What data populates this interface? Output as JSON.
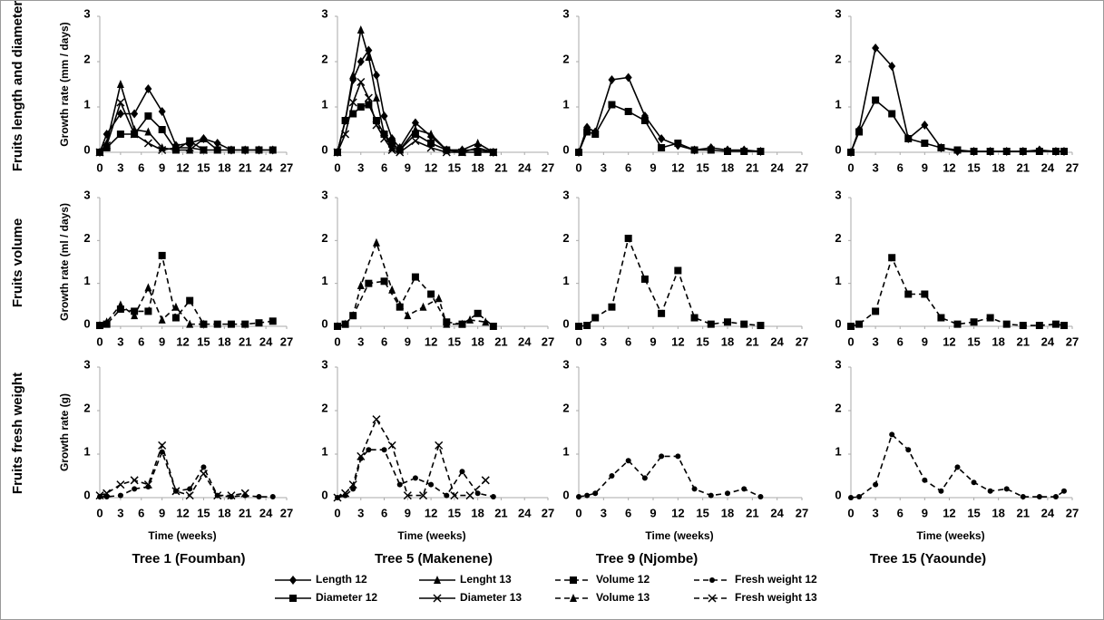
{
  "row_labels": [
    "Fruits length and diameter",
    "Fruits volume",
    "Fruits fresh weight"
  ],
  "column_titles": [
    "Tree 1 (Foumban)",
    "Tree 5 (Makenene)",
    "Tree 9 (Njombe)",
    "Tree 15 (Yaounde)"
  ],
  "legend": [
    {
      "name": "Length 12",
      "marker": "diamond",
      "dash": false,
      "color": "#000000"
    },
    {
      "name": "Lenght 13",
      "marker": "triangle",
      "dash": false,
      "color": "#000000"
    },
    {
      "name": "Volume 12",
      "marker": "square",
      "dash": true,
      "color": "#000000"
    },
    {
      "name": "Fresh weight 12",
      "marker": "circle",
      "dash": true,
      "color": "#000000"
    },
    {
      "name": "Diameter 12",
      "marker": "square",
      "dash": false,
      "color": "#000000"
    },
    {
      "name": "Diameter 13",
      "marker": "cross",
      "dash": false,
      "color": "#000000"
    },
    {
      "name": "Volume 13",
      "marker": "triangle",
      "dash": true,
      "color": "#000000"
    },
    {
      "name": "Fresh weight 13",
      "marker": "cross",
      "dash": true,
      "color": "#000000"
    }
  ],
  "chart_data": [
    {
      "type": "line",
      "y_label": "Growth rate (mm / days)",
      "xlim": [
        0,
        27
      ],
      "ylim": [
        0,
        3
      ],
      "xticks": [
        0,
        3,
        6,
        9,
        12,
        15,
        18,
        21,
        24,
        27
      ],
      "yticks": [
        0,
        1,
        2,
        3
      ],
      "series": [
        {
          "name": "Length 12",
          "x": [
            0,
            1,
            3,
            5,
            7,
            9,
            11,
            13,
            15,
            17,
            19,
            21,
            23,
            25
          ],
          "values": [
            0,
            0.4,
            0.85,
            0.85,
            1.4,
            0.9,
            0.15,
            0.2,
            0.3,
            0.2,
            0.05,
            0.05,
            0.05,
            0.05
          ]
        },
        {
          "name": "Lenght 13",
          "x": [
            0,
            1,
            3,
            5,
            7,
            9,
            11,
            13,
            15,
            17
          ],
          "values": [
            0,
            0.2,
            1.5,
            0.5,
            0.45,
            0.1,
            0.05,
            0.05,
            0.3,
            0.05
          ]
        },
        {
          "name": "Diameter 12",
          "x": [
            0,
            1,
            3,
            5,
            7,
            9,
            11,
            13,
            15,
            17,
            19,
            21,
            23,
            25
          ],
          "values": [
            0,
            0.1,
            0.4,
            0.4,
            0.8,
            0.5,
            0.05,
            0.25,
            0.05,
            0.05,
            0.05,
            0.05,
            0.05,
            0.05
          ]
        },
        {
          "name": "Diameter 13",
          "x": [
            0,
            1,
            3,
            5,
            7,
            9,
            11,
            13,
            15
          ],
          "values": [
            0,
            0.15,
            1.1,
            0.4,
            0.2,
            0.05,
            0.1,
            0.1,
            0.05
          ]
        }
      ]
    },
    {
      "type": "line",
      "xlim": [
        0,
        27
      ],
      "ylim": [
        0,
        3
      ],
      "xticks": [
        0,
        3,
        6,
        9,
        12,
        15,
        18,
        21,
        24,
        27
      ],
      "yticks": [
        0,
        1,
        2,
        3
      ],
      "series": [
        {
          "name": "Length 12",
          "x": [
            0,
            1,
            2,
            3,
            4,
            5,
            6,
            7,
            8,
            10,
            12,
            14,
            16,
            18,
            20
          ],
          "values": [
            0,
            0.7,
            1.6,
            2,
            2.25,
            1.7,
            0.8,
            0.3,
            0.1,
            0.65,
            0.35,
            0.05,
            0.05,
            0.05,
            0
          ]
        },
        {
          "name": "Lenght 13",
          "x": [
            0,
            1,
            2,
            3,
            4,
            5,
            6,
            7,
            8,
            10,
            12,
            14,
            16,
            18,
            20
          ],
          "values": [
            0,
            0.7,
            1.7,
            2.7,
            2.1,
            1.2,
            0.4,
            0.1,
            0.05,
            0.5,
            0.4,
            0.05,
            0.05,
            0.2,
            0
          ]
        },
        {
          "name": "Diameter 12",
          "x": [
            0,
            1,
            2,
            3,
            4,
            5,
            6,
            7,
            8,
            10,
            12,
            14,
            16,
            18,
            20
          ],
          "values": [
            0,
            0.7,
            0.85,
            1,
            1.05,
            0.7,
            0.4,
            0.2,
            0.05,
            0.4,
            0.2,
            0.05,
            0,
            0,
            0
          ]
        },
        {
          "name": "Diameter 13",
          "x": [
            0,
            1,
            2,
            3,
            4,
            5,
            6,
            7,
            8,
            10,
            12,
            14,
            16,
            18,
            20
          ],
          "values": [
            0,
            0.4,
            1.1,
            1.55,
            1.2,
            0.6,
            0.3,
            0.05,
            0,
            0.25,
            0.1,
            0,
            0,
            0.1,
            0
          ]
        }
      ]
    },
    {
      "type": "line",
      "xlim": [
        0,
        27
      ],
      "ylim": [
        0,
        3
      ],
      "xticks": [
        0,
        3,
        6,
        9,
        12,
        15,
        18,
        21,
        24,
        27
      ],
      "yticks": [
        0,
        1,
        2,
        3
      ],
      "series": [
        {
          "name": "Length 12",
          "x": [
            0,
            1,
            2,
            4,
            6,
            8,
            10,
            12,
            14,
            16,
            18,
            20,
            22
          ],
          "values": [
            0,
            0.55,
            0.45,
            1.6,
            1.65,
            0.8,
            0.3,
            0.15,
            0.05,
            0.1,
            0.05,
            0.05,
            0.02
          ]
        },
        {
          "name": "Diameter 12",
          "x": [
            0,
            1,
            2,
            4,
            6,
            8,
            10,
            12,
            14,
            16,
            18,
            20,
            22
          ],
          "values": [
            0,
            0.45,
            0.4,
            1.05,
            0.9,
            0.7,
            0.1,
            0.2,
            0.05,
            0.05,
            0.02,
            0.02,
            0.02
          ]
        }
      ]
    },
    {
      "type": "line",
      "xlim": [
        0,
        27
      ],
      "ylim": [
        0,
        3
      ],
      "xticks": [
        0,
        3,
        6,
        9,
        12,
        15,
        18,
        21,
        24,
        27
      ],
      "yticks": [
        0,
        1,
        2,
        3
      ],
      "series": [
        {
          "name": "Length 12",
          "x": [
            0,
            1,
            3,
            5,
            7,
            9,
            11,
            13,
            15,
            17,
            19,
            21,
            23,
            25,
            26
          ],
          "values": [
            0,
            0.5,
            2.3,
            1.9,
            0.3,
            0.6,
            0.1,
            0.02,
            0.02,
            0.02,
            0.02,
            0.02,
            0.05,
            0.02,
            0.02
          ]
        },
        {
          "name": "Diameter 12",
          "x": [
            0,
            1,
            3,
            5,
            7,
            9,
            11,
            13,
            15,
            17,
            19,
            21,
            23,
            25,
            26
          ],
          "values": [
            0,
            0.45,
            1.15,
            0.85,
            0.3,
            0.2,
            0.1,
            0.05,
            0.02,
            0.02,
            0.02,
            0.02,
            0.02,
            0.02,
            0.02
          ]
        }
      ]
    },
    {
      "type": "line",
      "y_label": "Growth rate (ml / days)",
      "xlim": [
        0,
        27
      ],
      "ylim": [
        0,
        3
      ],
      "xticks": [
        0,
        3,
        6,
        9,
        12,
        15,
        18,
        21,
        24,
        27
      ],
      "yticks": [
        0,
        1,
        2,
        3
      ],
      "series": [
        {
          "name": "Volume 12",
          "x": [
            0,
            1,
            3,
            5,
            7,
            9,
            11,
            13,
            15,
            17,
            19,
            21,
            23,
            25
          ],
          "values": [
            0.02,
            0.05,
            0.4,
            0.35,
            0.35,
            1.65,
            0.2,
            0.6,
            0.05,
            0.05,
            0.05,
            0.05,
            0.08,
            0.12
          ]
        },
        {
          "name": "Volume 13",
          "x": [
            0,
            1,
            3,
            5,
            7,
            9,
            11,
            13,
            15
          ],
          "values": [
            0.02,
            0.1,
            0.5,
            0.25,
            0.9,
            0.15,
            0.45,
            0.05,
            0.05
          ]
        }
      ]
    },
    {
      "type": "line",
      "xlim": [
        0,
        27
      ],
      "ylim": [
        0,
        3
      ],
      "xticks": [
        0,
        3,
        6,
        9,
        12,
        15,
        18,
        21,
        24,
        27
      ],
      "yticks": [
        0,
        1,
        2,
        3
      ],
      "series": [
        {
          "name": "Volume 12",
          "x": [
            0,
            1,
            2,
            4,
            6,
            8,
            10,
            12,
            14,
            16,
            18,
            20
          ],
          "values": [
            0,
            0.05,
            0.25,
            1,
            1.05,
            0.45,
            1.15,
            0.75,
            0.1,
            0.05,
            0.3,
            0
          ]
        },
        {
          "name": "Volume 13",
          "x": [
            0,
            1,
            2,
            3,
            5,
            7,
            8,
            9,
            11,
            13,
            14,
            16,
            17,
            19
          ],
          "values": [
            0,
            0.05,
            0.25,
            0.95,
            1.95,
            0.85,
            0.5,
            0.25,
            0.45,
            0.65,
            0.05,
            0.05,
            0.15,
            0.1
          ]
        }
      ]
    },
    {
      "type": "line",
      "xlim": [
        0,
        27
      ],
      "ylim": [
        0,
        3
      ],
      "xticks": [
        0,
        3,
        6,
        9,
        12,
        15,
        18,
        21,
        24,
        27
      ],
      "yticks": [
        0,
        1,
        2,
        3
      ],
      "series": [
        {
          "name": "Volume 12",
          "x": [
            0,
            1,
            2,
            4,
            6,
            8,
            10,
            12,
            14,
            16,
            18,
            20,
            22
          ],
          "values": [
            0,
            0.02,
            0.2,
            0.45,
            2.05,
            1.1,
            0.3,
            1.3,
            0.2,
            0.05,
            0.1,
            0.05,
            0.02
          ]
        }
      ]
    },
    {
      "type": "line",
      "xlim": [
        0,
        27
      ],
      "ylim": [
        0,
        3
      ],
      "xticks": [
        0,
        3,
        6,
        9,
        12,
        15,
        18,
        21,
        24,
        27
      ],
      "yticks": [
        0,
        1,
        2,
        3
      ],
      "series": [
        {
          "name": "Volume 12",
          "x": [
            0,
            1,
            3,
            5,
            7,
            9,
            11,
            13,
            15,
            17,
            19,
            21,
            23,
            25,
            26
          ],
          "values": [
            0,
            0.05,
            0.35,
            1.6,
            0.75,
            0.75,
            0.2,
            0.05,
            0.1,
            0.2,
            0.05,
            0.02,
            0.02,
            0.05,
            0.02
          ]
        }
      ]
    },
    {
      "type": "line",
      "y_label": "Growth rate (g)",
      "x_label": "Time (weeks)",
      "xlim": [
        0,
        27
      ],
      "ylim": [
        0,
        3
      ],
      "xticks": [
        0,
        3,
        6,
        9,
        12,
        15,
        18,
        21,
        24,
        27
      ],
      "yticks": [
        0,
        1,
        2,
        3
      ],
      "series": [
        {
          "name": "Fresh weight 12",
          "x": [
            0,
            1,
            3,
            5,
            7,
            9,
            11,
            13,
            15,
            17,
            19,
            21,
            23,
            25
          ],
          "values": [
            0.02,
            0.02,
            0.05,
            0.2,
            0.25,
            1.05,
            0.15,
            0.2,
            0.7,
            0.05,
            0.02,
            0.05,
            0.02,
            0.02
          ]
        },
        {
          "name": "Fresh weight 13",
          "x": [
            0,
            1,
            3,
            5,
            7,
            9,
            11,
            13,
            15,
            17,
            19,
            21
          ],
          "values": [
            0.05,
            0.1,
            0.3,
            0.4,
            0.3,
            1.2,
            0.15,
            0.05,
            0.55,
            0.05,
            0.05,
            0.1
          ]
        }
      ]
    },
    {
      "type": "line",
      "x_label": "Time (weeks)",
      "xlim": [
        0,
        27
      ],
      "ylim": [
        0,
        3
      ],
      "xticks": [
        0,
        3,
        6,
        9,
        12,
        15,
        18,
        21,
        24,
        27
      ],
      "yticks": [
        0,
        1,
        2,
        3
      ],
      "series": [
        {
          "name": "Fresh weight 12",
          "x": [
            0,
            1,
            2,
            3,
            4,
            6,
            8,
            10,
            12,
            14,
            16,
            18,
            20
          ],
          "values": [
            0,
            0.05,
            0.2,
            0.9,
            1.1,
            1.1,
            0.3,
            0.45,
            0.3,
            0.05,
            0.6,
            0.1,
            0.02
          ]
        },
        {
          "name": "Fresh weight 13",
          "x": [
            0,
            1,
            2,
            3,
            5,
            7,
            9,
            11,
            13,
            15,
            17,
            19
          ],
          "values": [
            0,
            0.1,
            0.3,
            0.95,
            1.8,
            1.2,
            0.05,
            0.05,
            1.2,
            0.05,
            0.05,
            0.4
          ]
        }
      ]
    },
    {
      "type": "line",
      "x_label": "Time (weeks)",
      "xlim": [
        0,
        27
      ],
      "ylim": [
        0,
        3
      ],
      "xticks": [
        0,
        3,
        6,
        9,
        12,
        15,
        18,
        21,
        24,
        27
      ],
      "yticks": [
        0,
        1,
        2,
        3
      ],
      "series": [
        {
          "name": "Fresh weight 12",
          "x": [
            0,
            1,
            2,
            4,
            6,
            8,
            10,
            12,
            14,
            16,
            18,
            20,
            22
          ],
          "values": [
            0.02,
            0.05,
            0.1,
            0.5,
            0.85,
            0.45,
            0.95,
            0.95,
            0.2,
            0.05,
            0.1,
            0.2,
            0.02
          ]
        }
      ]
    },
    {
      "type": "line",
      "x_label": "Time (weeks)",
      "xlim": [
        0,
        27
      ],
      "ylim": [
        0,
        3
      ],
      "xticks": [
        0,
        3,
        6,
        9,
        12,
        15,
        18,
        21,
        24,
        27
      ],
      "yticks": [
        0,
        1,
        2,
        3
      ],
      "series": [
        {
          "name": "Fresh weight 12",
          "x": [
            0,
            1,
            3,
            5,
            7,
            9,
            11,
            13,
            15,
            17,
            19,
            21,
            23,
            25,
            26
          ],
          "values": [
            0,
            0.02,
            0.3,
            1.45,
            1.1,
            0.4,
            0.15,
            0.7,
            0.35,
            0.15,
            0.2,
            0.02,
            0.02,
            0.02,
            0.15
          ]
        }
      ]
    }
  ]
}
